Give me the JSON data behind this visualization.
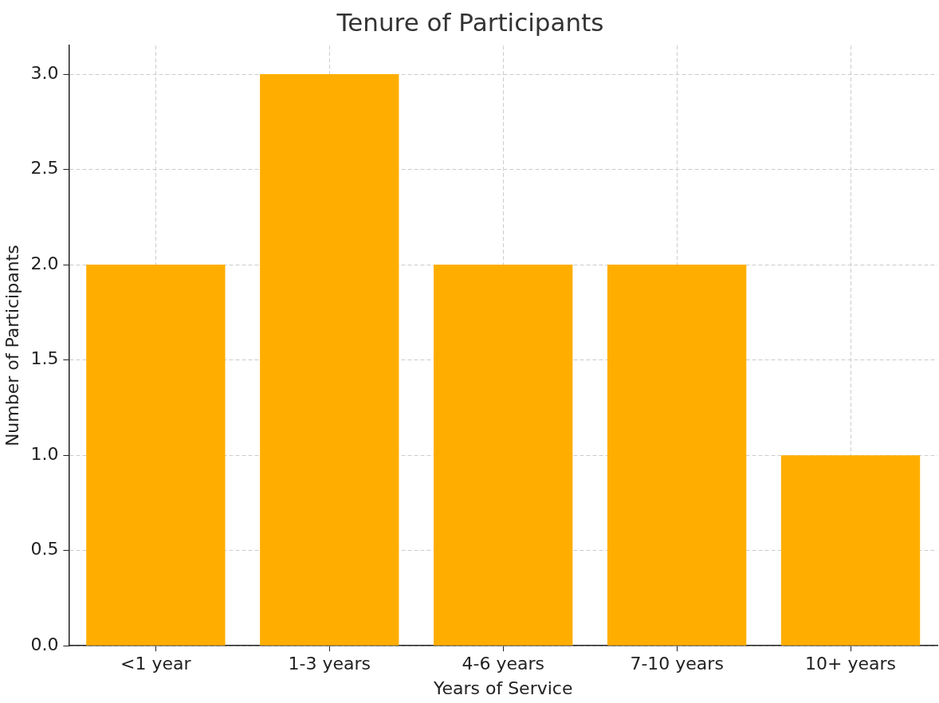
{
  "chart_data": {
    "type": "bar",
    "title": "Tenure of Participants",
    "xlabel": "Years of Service",
    "ylabel": "Number of Participants",
    "categories": [
      "<1 year",
      "1-3 years",
      "4-6 years",
      "7-10 years",
      "10+ years"
    ],
    "values": [
      2,
      3,
      2,
      2,
      1
    ],
    "color": "#ffae00",
    "ylim": [
      0,
      3.15
    ],
    "yticks": [
      {
        "value": 0,
        "label": "0.0"
      },
      {
        "value": 0.5,
        "label": "0.5"
      },
      {
        "value": 1,
        "label": "1.0"
      },
      {
        "value": 1.5,
        "label": "1.5"
      },
      {
        "value": 2,
        "label": "2.0"
      },
      {
        "value": 2.5,
        "label": "2.5"
      },
      {
        "value": 3,
        "label": "3.0"
      }
    ],
    "grid": true,
    "legend": false
  }
}
